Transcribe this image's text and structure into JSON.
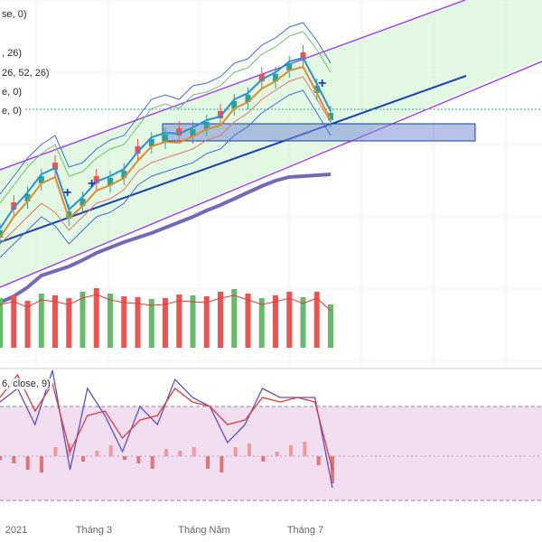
{
  "indicator_labels": {
    "ma_fragment": "se, 0)",
    "ichimoku_fragment": ", 26)",
    "ichimoku_params": "26, 52, 26)",
    "ema_fragment": "e, 0)",
    "sma_fragment": "e, 0)",
    "macd_fragment": "6, close, 9)"
  },
  "colors": {
    "channel": "#9b30ff",
    "trendline": "#1a3fb0",
    "long_ma": "#7469b6",
    "box_fill": "#7b8fd6",
    "up": "#26a69a",
    "down": "#ef5350",
    "osc_band": "#f1dff1",
    "price_band": "#d8f5d8"
  },
  "chart_data": {
    "type": "line",
    "x_axis": {
      "ticks": [
        "2021",
        "Tháng 3",
        "Tháng Năm",
        "Tháng 7"
      ]
    },
    "price": {
      "x": [
        0,
        1,
        2,
        3,
        4,
        5,
        6,
        7,
        8,
        9,
        10,
        11,
        12,
        13,
        14,
        15,
        16,
        17,
        18,
        19,
        20,
        21,
        22,
        23,
        24
      ],
      "close": [
        255,
        232,
        215,
        195,
        188,
        234,
        220,
        203,
        197,
        189,
        170,
        154,
        149,
        150,
        143,
        135,
        131,
        112,
        105,
        90,
        82,
        70,
        66,
        95,
        125
      ],
      "upper_band": [
        215,
        195,
        175,
        160,
        150,
        185,
        180,
        165,
        155,
        150,
        130,
        110,
        105,
        110,
        95,
        92,
        85,
        70,
        65,
        50,
        42,
        30,
        25,
        45,
        70
      ],
      "lower_band": [
        285,
        270,
        255,
        240,
        250,
        270,
        255,
        240,
        235,
        225,
        205,
        195,
        190,
        185,
        180,
        170,
        165,
        150,
        140,
        125,
        115,
        105,
        100,
        125,
        150
      ],
      "long_ma": [
        335,
        328,
        318,
        305,
        300,
        295,
        288,
        280,
        274,
        268,
        263,
        258,
        252,
        246,
        240,
        233,
        227,
        220,
        213,
        206,
        200,
        196,
        195,
        194,
        193
      ]
    },
    "volume": {
      "values": [
        55,
        58,
        52,
        60,
        58,
        55,
        62,
        66,
        60,
        57,
        56,
        54,
        55,
        59,
        58,
        57,
        62,
        65,
        60,
        55,
        58,
        62,
        56,
        62,
        48
      ],
      "directions": [
        "up",
        "down",
        "down",
        "up",
        "down",
        "down",
        "up",
        "down",
        "up",
        "down",
        "down",
        "up",
        "down",
        "down",
        "up",
        "down",
        "down",
        "up",
        "down",
        "up",
        "down",
        "down",
        "up",
        "down",
        "up"
      ]
    },
    "oscillator": {
      "k": [
        445,
        430,
        470,
        410,
        520,
        430,
        460,
        500,
        450,
        470,
        420,
        440,
        450,
        490,
        470,
        430,
        440,
        440,
        440,
        540
      ],
      "d": [
        440,
        415,
        455,
        425,
        500,
        460,
        455,
        485,
        465,
        460,
        430,
        445,
        450,
        470,
        465,
        440,
        445,
        440,
        445,
        520
      ],
      "hist": [
        -4,
        -8,
        -15,
        -18,
        10,
        14,
        -6,
        6,
        12,
        -4,
        -8,
        -14,
        8,
        6,
        10,
        -14,
        -18,
        10,
        14,
        -6,
        5,
        12,
        16,
        -10,
        -30
      ]
    }
  }
}
